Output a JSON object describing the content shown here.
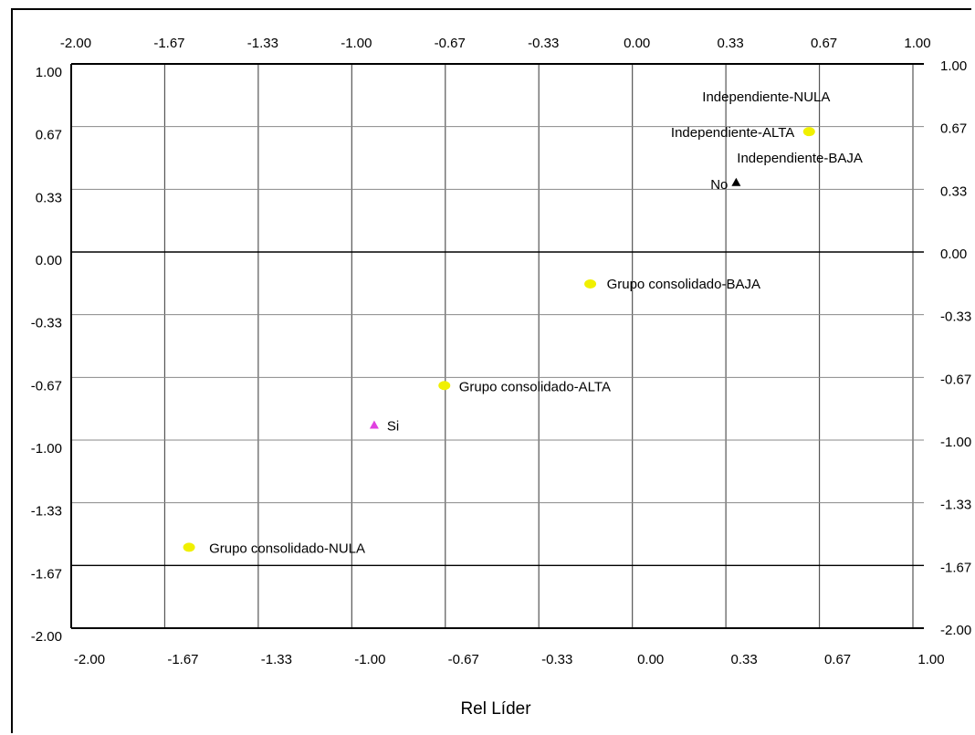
{
  "chart_data": {
    "type": "scatter",
    "xlabel": "Rel Líder",
    "ylabel": "",
    "xlim": [
      -2.0,
      1.0
    ],
    "ylim": [
      -2.0,
      1.0
    ],
    "xticks": [
      "-2.00",
      "-1.67",
      "-1.33",
      "-1.00",
      "-0.67",
      "-0.33",
      "0.00",
      "0.33",
      "0.67",
      "1.00"
    ],
    "yticks": [
      "1.00",
      "0.67",
      "0.33",
      "0.00",
      "-0.33",
      "-0.67",
      "-1.00",
      "-1.33",
      "-1.67",
      "-2.00"
    ],
    "grid": true,
    "points": [
      {
        "label": "Independiente-NULA",
        "x": 0.63,
        "y": 0.64,
        "marker": "circle",
        "color": "#f0f000"
      },
      {
        "label": "Independiente-ALTA",
        "x": 0.63,
        "y": 0.64,
        "marker": "circle",
        "color": "#f0f000"
      },
      {
        "label": "Independiente-BAJA",
        "x": 0.63,
        "y": 0.64,
        "marker": "circle",
        "color": "#f0f000"
      },
      {
        "label": "No",
        "x": 0.37,
        "y": 0.37,
        "marker": "triangle",
        "color": "#000000"
      },
      {
        "label": "Grupo consolidado-BAJA",
        "x": -0.15,
        "y": -0.17,
        "marker": "circle",
        "color": "#f0f000"
      },
      {
        "label": "Grupo consolidado-ALTA",
        "x": -0.67,
        "y": -0.71,
        "marker": "circle",
        "color": "#f0f000"
      },
      {
        "label": "Si",
        "x": -0.92,
        "y": -0.92,
        "marker": "triangle",
        "color": "#e040e0"
      },
      {
        "label": "Grupo consolidado-NULA",
        "x": -1.58,
        "y": -1.57,
        "marker": "circle",
        "color": "#f0f000"
      }
    ]
  }
}
